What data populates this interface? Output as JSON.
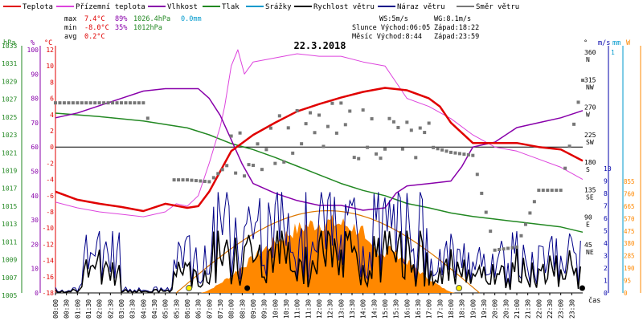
{
  "chart_data": {
    "type": "line",
    "title": "22.3.2018",
    "legend": [
      {
        "label": "Teplota",
        "color": "#e00000"
      },
      {
        "label": "Přízemní teplota",
        "color": "#dd44dd"
      },
      {
        "label": "Vlhkost",
        "color": "#8800aa"
      },
      {
        "label": "Tlak",
        "color": "#228822"
      },
      {
        "label": "Srážky",
        "color": "#0099cc"
      },
      {
        "label": "Rychlost větru",
        "color": "#000000"
      },
      {
        "label": "Náraz větru",
        "color": "#000088"
      },
      {
        "label": "Směr větru",
        "color": "#777777"
      }
    ],
    "stats": {
      "max": {
        "label": "max",
        "temp": "7.4°C",
        "hum": "89%",
        "press": "1026.4hPa",
        "rain": "0.0mm"
      },
      "min": {
        "label": "min",
        "temp": "-8.0°C",
        "hum": "35%",
        "press": "1012hPa"
      },
      "avg": {
        "label": "avg",
        "temp": "0.2°C"
      }
    },
    "info": {
      "ws": "WS:5m/s",
      "wg": "WG:8.1m/s",
      "sun": "Slunce Východ:06:05",
      "sun_set": "Západ:18:22",
      "moon": "Měsíc Východ:8:44",
      "moon_set": "Západ:23:59"
    },
    "axes": {
      "hpa_unit": "hPa",
      "pct_unit": "%",
      "temp_unit": "°C",
      "dir_unit": "°",
      "ms_unit": "m/s",
      "mm_unit": "mm",
      "w_unit": "W",
      "time_unit": "čas",
      "hpa_ticks": [
        "1033",
        "1031",
        "1029",
        "1027",
        "1025",
        "1023",
        "1021",
        "1019",
        "1017",
        "1015",
        "1013",
        "1011",
        "1009",
        "1007",
        "1005"
      ],
      "pct_ticks": [
        "100",
        "90",
        "80",
        "70",
        "60",
        "50",
        "40",
        "30",
        "20",
        "10",
        "0"
      ],
      "temp_ticks": [
        "12",
        "10",
        "8",
        "6",
        "4",
        "2",
        "0",
        "-2",
        "-4",
        "-6",
        "-8",
        "-10",
        "-12",
        "-14",
        "-16",
        "-18"
      ],
      "dir_ticks": [
        {
          "deg": "360",
          "dir": "N"
        },
        {
          "deg": "315",
          "dir": "NW"
        },
        {
          "deg": "270",
          "dir": "W"
        },
        {
          "deg": "225",
          "dir": "SW"
        },
        {
          "deg": "180",
          "dir": "S"
        },
        {
          "deg": "135",
          "dir": "SE"
        },
        {
          "deg": "90",
          "dir": "E"
        },
        {
          "deg": "45",
          "dir": "NE"
        }
      ],
      "ms_ticks": [
        "10",
        "9",
        "8",
        "7",
        "6",
        "5",
        "4",
        "3",
        "2",
        "1",
        "0"
      ],
      "mm_ticks": [
        "1"
      ],
      "w_ticks": [
        "855",
        "760",
        "665",
        "570",
        "475",
        "380",
        "285",
        "190",
        "95",
        "0"
      ],
      "time_labels": [
        "00:00",
        "00:30",
        "01:00",
        "01:30",
        "02:00",
        "02:30",
        "03:00",
        "03:30",
        "04:00",
        "04:30",
        "05:00",
        "05:30",
        "06:00",
        "06:30",
        "07:00",
        "07:30",
        "08:00",
        "08:30",
        "09:00",
        "09:30",
        "10:00",
        "10:30",
        "11:00",
        "11:30",
        "12:00",
        "12:30",
        "13:00",
        "13:30",
        "14:00",
        "14:30",
        "15:00",
        "15:30",
        "16:00",
        "16:30",
        "17:00",
        "17:30",
        "18:00",
        "18:30",
        "19:00",
        "19:30",
        "20:00",
        "20:30",
        "21:00",
        "21:30",
        "22:00",
        "22:30",
        "23:00",
        "23:30"
      ]
    },
    "series": {
      "hours_temp": [
        0,
        1,
        2,
        3,
        4,
        5,
        6,
        6.5,
        7,
        7.5,
        8,
        8.5,
        9,
        10,
        11,
        12,
        13,
        14,
        15,
        16,
        17,
        17.5,
        18,
        19,
        20,
        21,
        22,
        23,
        24
      ],
      "temp": [
        -5.5,
        -6.5,
        -7,
        -7.4,
        -7.9,
        -7,
        -7.5,
        -7.3,
        -5.5,
        -3,
        -0.5,
        0.5,
        1.5,
        3,
        4.4,
        5.3,
        6.1,
        6.8,
        7.3,
        7,
        6,
        5,
        3,
        0.5,
        0.5,
        0.5,
        0,
        -0.3,
        -1.7
      ],
      "hours_ground": [
        0,
        1,
        2,
        3,
        4,
        5,
        5.5,
        6,
        6.5,
        7,
        7.5,
        7.7,
        8,
        8.3,
        8.6,
        9,
        10,
        11,
        12,
        13,
        14,
        15,
        15.5,
        16,
        17,
        18,
        19,
        20,
        21,
        22,
        23,
        24
      ],
      "ground": [
        -6.8,
        -7.5,
        -8,
        -8.3,
        -8.6,
        -8,
        -7,
        -7.3,
        -6,
        -2,
        2.5,
        5,
        10,
        12,
        9,
        10.5,
        11,
        11.5,
        11.2,
        11.2,
        10.5,
        10,
        8,
        6,
        5,
        3.5,
        1.5,
        0,
        -0.5,
        -1.5,
        -2.5,
        -4
      ],
      "hours_hum": [
        0,
        1,
        2,
        3,
        4,
        5,
        6,
        6.5,
        7,
        7.5,
        8,
        8.5,
        9,
        10,
        11,
        12,
        13,
        14,
        15,
        15.5,
        16,
        17,
        18,
        18.5,
        19,
        20,
        21,
        22,
        23,
        24
      ],
      "hum": [
        72,
        74,
        77,
        80,
        83,
        84,
        84,
        84,
        80,
        73,
        63,
        53,
        45,
        41,
        38,
        36,
        36,
        34,
        35,
        41,
        44,
        45,
        46,
        52,
        60,
        62,
        68,
        70,
        72,
        75
      ],
      "hours_press": [
        0,
        2,
        4,
        6,
        7,
        8,
        9,
        10,
        11,
        12,
        13,
        14,
        15,
        16,
        17,
        18,
        19,
        20,
        21,
        22,
        23,
        24
      ],
      "pressure": [
        1025.7,
        1025.3,
        1024.8,
        1024,
        1023.2,
        1022.2,
        1021.5,
        1020.6,
        1019.6,
        1018.6,
        1017.6,
        1016.8,
        1016.2,
        1015.3,
        1014.8,
        1014.2,
        1013.8,
        1013.5,
        1013.2,
        1012.9,
        1012.6,
        1012
      ],
      "wind_speed_avg_ms": 5,
      "wind_gust_max_ms": 8.1,
      "solar_peak_w": 570,
      "hours_dir": [
        0,
        4,
        5,
        6,
        7,
        8,
        9,
        10,
        11,
        12,
        13,
        14,
        15,
        16,
        17,
        18,
        19,
        20,
        21,
        22,
        23,
        24
      ],
      "wind_dir": [
        281,
        281,
        155,
        155,
        152,
        185,
        210,
        225,
        225,
        230,
        240,
        230,
        235,
        215,
        210,
        200,
        195,
        40,
        45,
        138,
        138,
        318
      ]
    },
    "ylim_temp": [
      -18,
      12
    ],
    "ylim_hum": [
      0,
      100
    ],
    "ylim_press": [
      1005,
      1033
    ],
    "xlim_hours": [
      0,
      24
    ],
    "colors": {
      "temp": "#e00000",
      "ground": "#dd44dd",
      "hum": "#8800aa",
      "press": "#228822",
      "rain": "#0099cc",
      "wind": "#000000",
      "gust": "#000088",
      "dir": "#777777",
      "solar": "#ff8800",
      "theory": "#dd7700"
    }
  }
}
